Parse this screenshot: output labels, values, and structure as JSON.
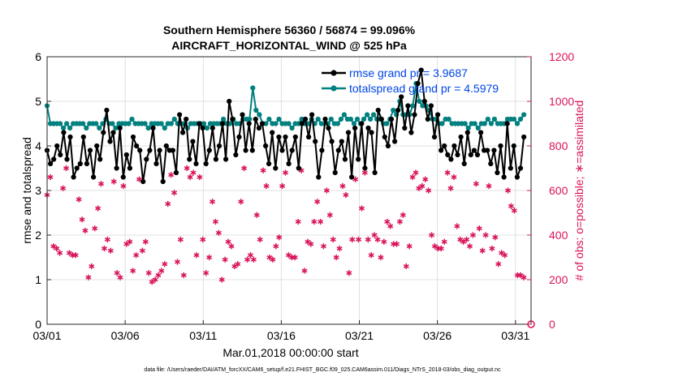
{
  "chart_data": {
    "type": "line",
    "title": "Southern Hemisphere 56360 / 56874 = 99.096%",
    "subtitle": "AIRCRAFT_HORIZONTAL_WIND @ 525 hPa",
    "xlabel": "Mar.01,2018 00:00:00 start",
    "ylabel": "rmse and totalspread",
    "y2label": "# of obs: o=possible; ∗=assimilated",
    "footnote": "data file: /Users/raeder/DAI/ATM_forcXX/CAM6_setup/f.e21.FHIST_BGC.f09_025.CAM6assim.011/Diags_NTrS_2018-03/obs_diag_output.nc",
    "x_ticks": [
      {
        "label": "03/01",
        "day": 0
      },
      {
        "label": "03/06",
        "day": 5
      },
      {
        "label": "03/11",
        "day": 10
      },
      {
        "label": "03/16",
        "day": 15
      },
      {
        "label": "03/21",
        "day": 20
      },
      {
        "label": "03/26",
        "day": 25
      },
      {
        "label": "03/31",
        "day": 30
      }
    ],
    "xlim": [
      0,
      31
    ],
    "ylim": [
      0,
      6
    ],
    "y_ticks": [
      "0",
      "1",
      "2",
      "3",
      "4",
      "5",
      "6"
    ],
    "y2lim": [
      0,
      1200
    ],
    "y2_ticks": [
      "0",
      "200",
      "400",
      "600",
      "800",
      "1000",
      "1200"
    ],
    "colors": {
      "rmse": "#000000",
      "spread": "#00807f",
      "obs": "#d9145c",
      "legend_text": "#0046e6"
    },
    "series": [
      {
        "name": "rmse grand pr = 3.9687",
        "axis": "left",
        "values": [
          3.9,
          3.6,
          3.7,
          4.0,
          3.8,
          4.3,
          3.7,
          4.2,
          3.3,
          3.5,
          3.6,
          4.2,
          3.6,
          3.9,
          3.3,
          4.0,
          3.7,
          4.3,
          4.8,
          4.1,
          4.3,
          3.5,
          4.4,
          3.3,
          3.8,
          3.5,
          4.2,
          4.0,
          3.9,
          3.2,
          3.7,
          3.9,
          4.4,
          3.6,
          3.9,
          3.2,
          4.0,
          3.9,
          3.9,
          3.4,
          4.7,
          4.3,
          4.6,
          3.7,
          4.1,
          3.6,
          4.5,
          4.4,
          3.6,
          3.9,
          4.4,
          3.7,
          4.0,
          4.5,
          3.7,
          5.0,
          4.6,
          3.8,
          4.2,
          4.7,
          3.9,
          4.5,
          3.9,
          4.6,
          4.4,
          4.5,
          4.0,
          3.6,
          4.3,
          3.5,
          4.2,
          3.9,
          4.2,
          3.6,
          3.9,
          4.2,
          3.5,
          4.5,
          4.6,
          4.2,
          4.7,
          4.1,
          3.3,
          3.9,
          4.6,
          4.4,
          4.1,
          3.4,
          3.9,
          4.1,
          3.7,
          4.3,
          3.3,
          4.4,
          3.7,
          4.5,
          3.5,
          4.4,
          4.3,
          3.4,
          4.8,
          4.6,
          4.2,
          4.0,
          4.6,
          4.1,
          4.8,
          5.1,
          4.4,
          4.9,
          4.3,
          4.7,
          5.4,
          5.7,
          5.0,
          4.6,
          4.9,
          4.2,
          4.7,
          3.9,
          4.0,
          3.8,
          3.7,
          4.0,
          3.8,
          4.2,
          3.6,
          4.3,
          3.8,
          3.9,
          3.8,
          4.3,
          3.9,
          3.9,
          3.6,
          3.9,
          3.4,
          4.0,
          3.3,
          4.5,
          3.5,
          4.0,
          3.3,
          3.5,
          4.2
        ]
      },
      {
        "name": "totalspread grand pr = 4.5979",
        "axis": "left",
        "values": [
          4.9,
          4.5,
          4.5,
          4.5,
          4.5,
          4.4,
          4.5,
          4.4,
          4.5,
          4.5,
          4.5,
          4.5,
          4.4,
          4.5,
          4.5,
          4.5,
          4.4,
          4.5,
          4.6,
          4.5,
          4.5,
          4.4,
          4.5,
          4.5,
          4.5,
          4.5,
          4.6,
          4.5,
          4.5,
          4.5,
          4.5,
          4.4,
          4.5,
          4.5,
          4.5,
          4.5,
          4.4,
          4.5,
          4.5,
          4.6,
          4.5,
          4.5,
          4.5,
          4.4,
          4.5,
          4.5,
          4.5,
          4.5,
          4.5,
          4.4,
          4.5,
          4.5,
          4.5,
          4.5,
          4.6,
          4.5,
          4.5,
          4.6,
          4.5,
          4.5,
          4.6,
          4.6,
          4.6,
          5.3,
          4.8,
          4.7,
          4.5,
          4.5,
          4.6,
          4.5,
          4.5,
          4.6,
          4.5,
          4.5,
          4.5,
          4.4,
          4.5,
          4.5,
          4.6,
          4.5,
          4.5,
          4.6,
          4.5,
          4.6,
          4.5,
          4.5,
          4.5,
          4.6,
          4.5,
          4.5,
          4.6,
          4.7,
          4.6,
          4.6,
          4.5,
          4.6,
          4.5,
          4.6,
          4.7,
          4.6,
          4.7,
          4.6,
          4.6,
          4.5,
          4.5,
          4.6,
          4.8,
          4.7,
          5.0,
          4.7,
          4.7,
          4.7,
          4.9,
          5.4,
          5.0,
          4.9,
          4.9,
          4.8,
          4.6,
          4.6,
          4.5,
          4.5,
          4.6,
          4.6,
          4.5,
          4.5,
          4.5,
          4.5,
          4.5,
          4.4,
          4.5,
          4.5,
          4.4,
          4.5,
          4.5,
          4.6,
          4.5,
          4.6,
          4.5,
          4.5,
          4.5,
          4.6,
          4.6,
          4.6,
          4.5,
          4.6,
          4.7
        ]
      }
    ],
    "obs_assimilated": [
      580,
      660,
      350,
      340,
      320,
      610,
      700,
      320,
      310,
      310,
      560,
      470,
      420,
      210,
      260,
      430,
      520,
      630,
      340,
      380,
      330,
      640,
      230,
      210,
      620,
      360,
      370,
      240,
      310,
      650,
      330,
      370,
      230,
      190,
      200,
      220,
      240,
      270,
      540,
      670,
      590,
      280,
      380,
      220,
      700,
      660,
      680,
      310,
      660,
      380,
      230,
      300,
      550,
      460,
      410,
      200,
      290,
      370,
      350,
      260,
      270,
      550,
      700,
      290,
      310,
      290,
      490,
      380,
      690,
      620,
      300,
      290,
      350,
      390,
      620,
      680,
      310,
      300,
      300,
      460,
      690,
      240,
      370,
      360,
      460,
      550,
      460,
      350,
      600,
      490,
      380,
      300,
      340,
      620,
      580,
      230,
      380,
      650,
      380,
      520,
      680,
      380,
      310,
      400,
      380,
      300,
      370,
      460,
      440,
      360,
      360,
      460,
      490,
      260,
      350,
      660,
      680,
      610,
      620,
      650,
      600,
      400,
      350,
      340,
      340,
      370,
      680,
      610,
      660,
      440,
      380,
      370,
      380,
      350,
      400,
      630,
      430,
      330,
      400,
      620,
      340,
      390,
      270,
      320,
      310,
      600,
      530,
      510,
      220,
      220,
      210
    ]
  }
}
